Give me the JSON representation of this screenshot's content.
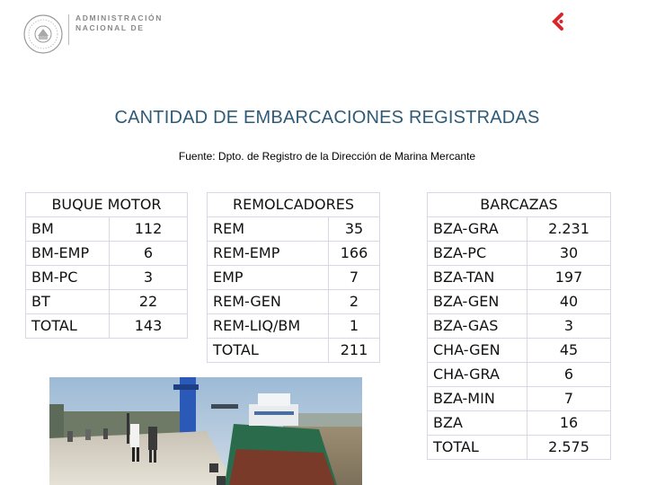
{
  "header": {
    "logo_icon": "seal-icon",
    "org_line1": "ADMINISTRACIÓN",
    "org_line2": "NACIONAL DE",
    "corner_icon": "brand-mark-icon",
    "accent_color": "#d9262c"
  },
  "title": "CANTIDAD DE EMBARCACIONES REGISTRADAS",
  "source": "Fuente: Dpto. de Registro de la Dirección de Marina Mercante",
  "tables": {
    "buque": {
      "title": "BUQUE MOTOR",
      "rows": [
        {
          "label": "BM",
          "value": "112"
        },
        {
          "label": "BM-EMP",
          "value": "6"
        },
        {
          "label": "BM-PC",
          "value": "3"
        },
        {
          "label": "BT",
          "value": "22"
        },
        {
          "label": "TOTAL",
          "value": "143"
        }
      ]
    },
    "remolcadores": {
      "title": "REMOLCADORES",
      "rows": [
        {
          "label": "REM",
          "value": "35"
        },
        {
          "label": "REM-EMP",
          "value": "166"
        },
        {
          "label": "EMP",
          "value": "7"
        },
        {
          "label": "REM-GEN",
          "value": "2"
        },
        {
          "label": "REM-LIQ/BM",
          "value": "1"
        },
        {
          "label": "TOTAL",
          "value": "211"
        }
      ]
    },
    "barcazas": {
      "title": "BARCAZAS",
      "rows": [
        {
          "label": "BZA-GRA",
          "value": "2.231"
        },
        {
          "label": "BZA-PC",
          "value": "30"
        },
        {
          "label": "BZA-TAN",
          "value": "197"
        },
        {
          "label": "BZA-GEN",
          "value": "40"
        },
        {
          "label": "BZA-GAS",
          "value": "3"
        },
        {
          "label": "CHA-GEN",
          "value": "45"
        },
        {
          "label": "CHA-GRA",
          "value": "6"
        },
        {
          "label": "BZA-MIN",
          "value": "7"
        },
        {
          "label": "BZA",
          "value": "16"
        },
        {
          "label": "TOTAL",
          "value": "2.575"
        }
      ]
    }
  },
  "photo": {
    "icon": "port-ship-photo"
  }
}
